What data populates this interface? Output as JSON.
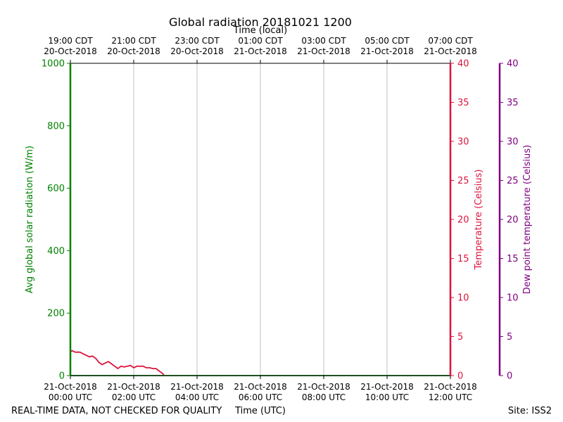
{
  "chart_data": {
    "type": "line",
    "title": "Global radiation 20181021 1200",
    "top_axis_label": "Time (local)",
    "xlabel": "Time (UTC)",
    "x_unit": "hours since 21-Oct-2018 00:00 UTC",
    "xlim": [
      0,
      12
    ],
    "x_ticks": [
      {
        "x": 0,
        "utc_date": "21-Oct-2018",
        "utc_time": "00:00 UTC",
        "local_time": "19:00 CDT",
        "local_date": "20-Oct-2018"
      },
      {
        "x": 2,
        "utc_date": "21-Oct-2018",
        "utc_time": "02:00 UTC",
        "local_time": "21:00 CDT",
        "local_date": "20-Oct-2018"
      },
      {
        "x": 4,
        "utc_date": "21-Oct-2018",
        "utc_time": "04:00 UTC",
        "local_time": "23:00 CDT",
        "local_date": "20-Oct-2018"
      },
      {
        "x": 6,
        "utc_date": "21-Oct-2018",
        "utc_time": "06:00 UTC",
        "local_time": "01:00 CDT",
        "local_date": "21-Oct-2018"
      },
      {
        "x": 8,
        "utc_date": "21-Oct-2018",
        "utc_time": "08:00 UTC",
        "local_time": "03:00 CDT",
        "local_date": "21-Oct-2018"
      },
      {
        "x": 10,
        "utc_date": "21-Oct-2018",
        "utc_time": "10:00 UTC",
        "local_time": "05:00 CDT",
        "local_date": "21-Oct-2018"
      },
      {
        "x": 12,
        "utc_date": "21-Oct-2018",
        "utc_time": "12:00 UTC",
        "local_time": "07:00 CDT",
        "local_date": "21-Oct-2018"
      }
    ],
    "axes": [
      {
        "id": "radiation",
        "label": "Avg global solar radiation (W/m)",
        "ylim": [
          0,
          1000
        ],
        "ticks": [
          0,
          200,
          400,
          600,
          800,
          1000
        ],
        "color": "#008000",
        "side": "left"
      },
      {
        "id": "temperature",
        "label": "Temperature (Celsius)",
        "ylim": [
          0,
          40
        ],
        "ticks": [
          0,
          5,
          10,
          15,
          20,
          25,
          30,
          35,
          40
        ],
        "color": "#dc143c",
        "side": "right"
      },
      {
        "id": "dewpoint",
        "label": "Dew point temperature (Celsius)",
        "ylim": [
          0,
          40
        ],
        "ticks": [
          0,
          5,
          10,
          15,
          20,
          25,
          30,
          35,
          40
        ],
        "color": "#800080",
        "side": "right-outer"
      }
    ],
    "series": [
      {
        "name": "Avg global solar radiation",
        "axis": "radiation",
        "color": "#008000",
        "x": [
          0,
          12
        ],
        "y": [
          0,
          0
        ]
      },
      {
        "name": "Temperature",
        "axis": "temperature",
        "color": "#dc143c",
        "x": [
          0,
          0.05,
          0.15,
          0.3,
          0.4,
          0.5,
          0.6,
          0.7,
          0.8,
          0.9,
          1.0,
          1.1,
          1.2,
          1.3,
          1.4,
          1.5,
          1.6,
          1.7,
          1.8,
          1.9,
          2.0,
          2.1,
          2.2,
          2.3,
          2.4,
          2.5,
          2.6,
          2.7,
          2.8,
          2.9,
          2.95
        ],
        "y": [
          3.0,
          3.2,
          3.0,
          3.0,
          2.8,
          2.6,
          2.4,
          2.5,
          2.2,
          1.7,
          1.4,
          1.6,
          1.8,
          1.5,
          1.2,
          0.9,
          1.2,
          1.1,
          1.2,
          1.3,
          1.0,
          1.2,
          1.2,
          1.2,
          1.0,
          1.0,
          0.9,
          0.9,
          0.6,
          0.3,
          0.1
        ]
      }
    ],
    "gridlines": "vertical",
    "legend": "none"
  },
  "footer": {
    "disclaimer": "REAL-TIME DATA, NOT CHECKED FOR QUALITY",
    "site": "Site: ISS2"
  }
}
